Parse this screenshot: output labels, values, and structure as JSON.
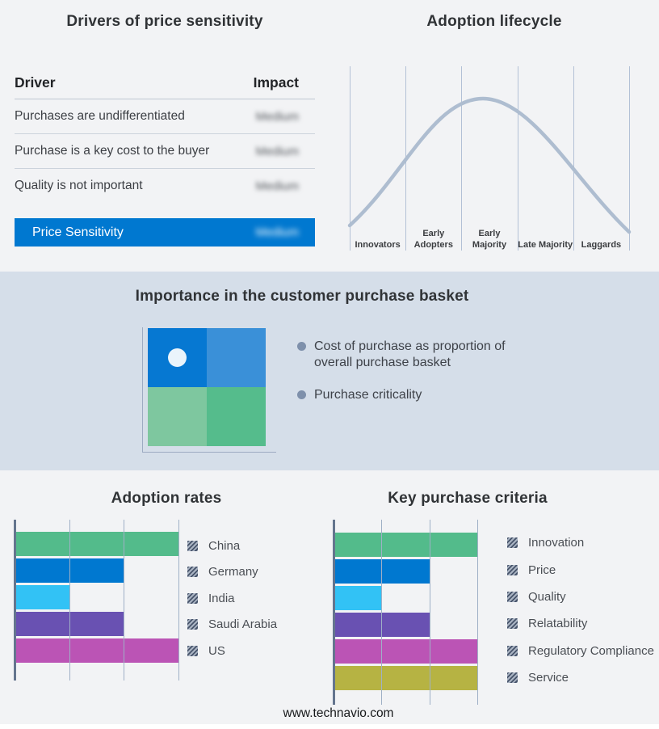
{
  "drivers_table": {
    "title": "Drivers of price sensitivity",
    "col_driver": "Driver",
    "col_impact": "Impact",
    "rows": [
      {
        "driver": "Purchases are undifferentiated",
        "impact": "Medium"
      },
      {
        "driver": "Purchase is a key cost to the buyer",
        "impact": "Medium"
      },
      {
        "driver": "Quality is not important",
        "impact": "Medium"
      }
    ],
    "highlight_row": {
      "driver": "Price Sensitivity",
      "impact": "Medium"
    }
  },
  "lifecycle": {
    "title": "Adoption lifecycle",
    "stages": [
      "Innovators",
      "Early Adopters",
      "Early Majority",
      "Late Majority",
      "Laggards"
    ]
  },
  "purchase_basket": {
    "title": "Importance in the customer purchase basket",
    "bullets": [
      "Cost of purchase as proportion of overall purchase basket",
      "Purchase criticality"
    ]
  },
  "footer": {
    "url": "www.technavio.com"
  },
  "colors": {
    "background": "#f2f3f5",
    "middle_band": "#d5dee9",
    "highlight_blue": "#0078d0",
    "curve": "#aebdd0",
    "gridline": "#9fb0c6",
    "axis": "#64758e",
    "quad_top_left": "#0678d2",
    "quad_top_right": "#3a90d8",
    "quad_bottom_left": "#7ec79f",
    "quad_bottom_right": "#55bc8c"
  },
  "chart_data": [
    {
      "type": "table",
      "title": "Drivers of price sensitivity",
      "columns": [
        "Driver",
        "Impact"
      ],
      "rows": [
        [
          "Purchases are undifferentiated",
          "Medium"
        ],
        [
          "Purchase is a key cost to the buyer",
          "Medium"
        ],
        [
          "Quality is not important",
          "Medium"
        ],
        [
          "Price Sensitivity",
          "Medium"
        ]
      ],
      "note": "impact values shown blurred; Price Sensitivity row highlighted blue"
    },
    {
      "type": "line",
      "title": "Adoption lifecycle",
      "categories": [
        "Innovators",
        "Early Adopters",
        "Early Majority",
        "Late Majority",
        "Laggards"
      ],
      "description": "Bell curve rising from Innovators, peaking over Early Majority, falling through Laggards",
      "grid": "vertical stage dividers only",
      "legend_position": "none"
    },
    {
      "type": "bar",
      "title": "Adoption rates",
      "orientation": "horizontal",
      "categories": [
        "China",
        "Germany",
        "India",
        "Saudi Arabia",
        "US"
      ],
      "values": [
        3,
        2,
        1,
        2,
        3
      ],
      "xlim": [
        0,
        3
      ],
      "grid": "vertical, 3 divisions",
      "colors": [
        "#53bb8b",
        "#0078d0",
        "#32c2f5",
        "#6951b2",
        "#bb54b5"
      ],
      "legend_position": "right",
      "xlabel": "",
      "ylabel": ""
    },
    {
      "type": "bar",
      "title": "Key purchase criteria",
      "orientation": "horizontal",
      "categories": [
        "Innovation",
        "Price",
        "Quality",
        "Relatability",
        "Regulatory Compliance",
        "Service"
      ],
      "values": [
        3,
        2,
        1,
        2,
        3,
        3
      ],
      "xlim": [
        0,
        3
      ],
      "grid": "vertical, 3 divisions",
      "colors": [
        "#53bb8b",
        "#0078d0",
        "#32c2f5",
        "#6951b2",
        "#bb54b5",
        "#b6b343"
      ],
      "legend_position": "right",
      "xlabel": "",
      "ylabel": ""
    }
  ]
}
